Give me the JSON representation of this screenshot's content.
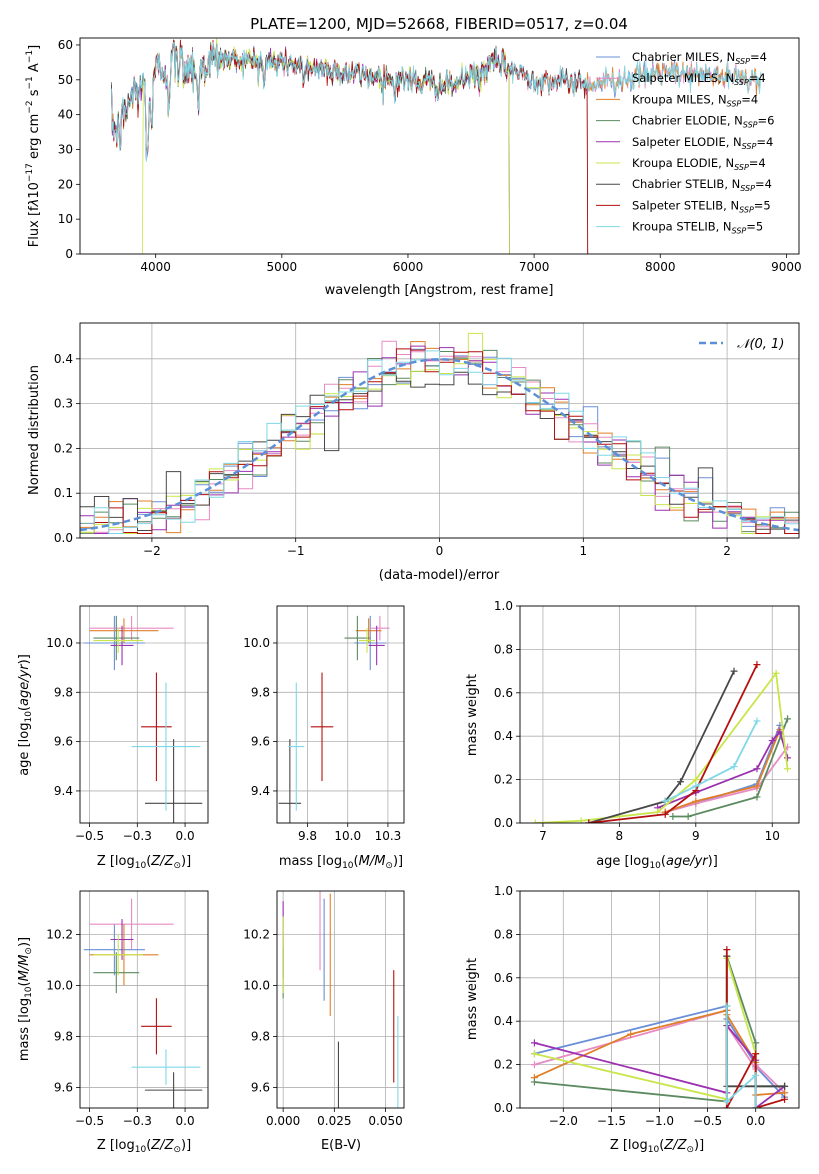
{
  "colors": [
    "#6a8fd8",
    "#e88ac3",
    "#e07f2a",
    "#5c8a60",
    "#9b30b0",
    "#c8e64a",
    "#474747",
    "#b40f0f",
    "#7fd8e6"
  ],
  "chart_data": [
    {
      "id": "spectrum",
      "type": "line",
      "title": "PLATE=1200, MJD=52668, FIBERID=0517, z=0.04",
      "xlabel": "wavelength [Angstrom, rest frame]",
      "ylabel": "Flux [f_λ 10⁻¹⁷ erg cm⁻² s⁻¹ A⁻¹]",
      "xlim": [
        3400,
        9100
      ],
      "ylim": [
        0,
        62
      ],
      "xticks": [
        4000,
        5000,
        6000,
        7000,
        8000,
        9000
      ],
      "yticks": [
        0,
        10,
        20,
        30,
        40,
        50,
        60
      ],
      "legend_position": "top-right",
      "legend": [
        {
          "name": "Chabrier MILES",
          "n": "4"
        },
        {
          "name": "Salpeter MILES",
          "n": "4"
        },
        {
          "name": "Kroupa MILES",
          "n": "4"
        },
        {
          "name": "Chabrier ELODIE",
          "n": "6"
        },
        {
          "name": "Salpeter ELODIE",
          "n": "4"
        },
        {
          "name": "Kroupa ELODIE",
          "n": "4"
        },
        {
          "name": "Chabrier STELIB",
          "n": "4"
        },
        {
          "name": "Salpeter STELIB",
          "n": "5"
        },
        {
          "name": "Kroupa STELIB",
          "n": "5"
        }
      ],
      "continuum": {
        "x": [
          3650,
          3700,
          3800,
          3900,
          4000,
          4100,
          4300,
          4500,
          5000,
          5500,
          6000,
          6300,
          6500,
          6700,
          7000,
          7500,
          8000,
          8500,
          8900
        ],
        "y": [
          38,
          34,
          45,
          48,
          52,
          55,
          54,
          56,
          55,
          52,
          50,
          48,
          51,
          55,
          50,
          49,
          52,
          51,
          50
        ]
      },
      "ranges": [
        [
          3650,
          8800
        ],
        [
          3650,
          8800
        ],
        [
          3650,
          8800
        ],
        [
          3650,
          6800
        ],
        [
          3650,
          6800
        ],
        [
          3900,
          6800
        ],
        [
          3650,
          7420
        ],
        [
          3650,
          7420
        ],
        [
          3650,
          8800
        ]
      ]
    },
    {
      "id": "residuals",
      "type": "step",
      "xlabel": "(data-model)/error",
      "ylabel": "Normed distribution",
      "xlim": [
        -2.5,
        2.5
      ],
      "ylim": [
        0,
        0.48
      ],
      "xticks": [
        -2,
        -1,
        0,
        1,
        2
      ],
      "yticks": [
        0.0,
        0.1,
        0.2,
        0.3,
        0.4
      ],
      "reference_label": "𝒩(0, 1)",
      "bin_width": 0.1
    },
    {
      "id": "age-vs-z",
      "type": "errorbar",
      "xlabel": "Z [log₁₀(Z/Z☉)]",
      "ylabel": "age  [log₁₀(age/yr)]",
      "xlim": [
        -0.55,
        0.12
      ],
      "ylim": [
        9.27,
        10.15
      ],
      "xticks": [
        -0.5,
        -0.25,
        0.0
      ],
      "yticks": [
        9.4,
        9.6,
        9.8,
        10.0
      ],
      "points": [
        {
          "x": -0.37,
          "xe": 0.16,
          "y": 10.0,
          "ye": 0.11
        },
        {
          "x": -0.28,
          "xe": 0.22,
          "y": 10.06,
          "ye": 0.05
        },
        {
          "x": -0.32,
          "xe": 0.18,
          "y": 10.05,
          "ye": 0.05
        },
        {
          "x": -0.36,
          "xe": 0.12,
          "y": 10.02,
          "ye": 0.09
        },
        {
          "x": -0.33,
          "xe": 0.06,
          "y": 9.99,
          "ye": 0.08
        },
        {
          "x": -0.35,
          "xe": 0.13,
          "y": 10.01,
          "ye": 0.05
        },
        {
          "x": -0.06,
          "xe": 0.15,
          "y": 9.35,
          "ye": 0.26
        },
        {
          "x": -0.15,
          "xe": 0.08,
          "y": 9.66,
          "ye": 0.22
        },
        {
          "x": -0.1,
          "xe": 0.18,
          "y": 9.58,
          "ye": 0.26
        }
      ]
    },
    {
      "id": "age-vs-mass",
      "type": "errorbar",
      "xlabel": "mass [log₁₀(M/M☉)]",
      "ylabel": "",
      "xlim": [
        9.56,
        10.35
      ],
      "ylim": [
        9.27,
        10.15
      ],
      "xticks": [
        9.75,
        10.0,
        10.25
      ],
      "yticks": [
        9.4,
        9.6,
        9.8,
        10.0
      ],
      "points": [
        {
          "x": 10.14,
          "xe": 0.1,
          "y": 10.0,
          "ye": 0.11
        },
        {
          "x": 10.2,
          "xe": 0.06,
          "y": 10.06,
          "ye": 0.05
        },
        {
          "x": 10.13,
          "xe": 0.08,
          "y": 10.05,
          "ye": 0.05
        },
        {
          "x": 10.06,
          "xe": 0.08,
          "y": 10.02,
          "ye": 0.09
        },
        {
          "x": 10.18,
          "xe": 0.05,
          "y": 9.99,
          "ye": 0.08
        },
        {
          "x": 10.12,
          "xe": 0.05,
          "y": 10.01,
          "ye": 0.05
        },
        {
          "x": 9.64,
          "xe": 0.07,
          "y": 9.35,
          "ye": 0.26
        },
        {
          "x": 9.84,
          "xe": 0.07,
          "y": 9.66,
          "ye": 0.22
        },
        {
          "x": 9.68,
          "xe": 0.05,
          "y": 9.58,
          "ye": 0.26
        }
      ]
    },
    {
      "id": "mass-weight-vs-age",
      "type": "line",
      "xlabel": "age  [log₁₀(age/yr)]",
      "ylabel": "mass weight",
      "xlim": [
        6.7,
        10.35
      ],
      "ylim": [
        0,
        1.0
      ],
      "xticks": [
        7,
        8,
        9,
        10
      ],
      "yticks": [
        0.0,
        0.2,
        0.4,
        0.6,
        0.8,
        1.0
      ],
      "series": [
        {
          "x": [
            8.6,
            9.0,
            9.8,
            10.1
          ],
          "y": [
            0.05,
            0.09,
            0.18,
            0.45
          ]
        },
        {
          "x": [
            8.6,
            9.0,
            9.8,
            10.2
          ],
          "y": [
            0.05,
            0.09,
            0.16,
            0.35
          ]
        },
        {
          "x": [
            8.6,
            9.0,
            9.8,
            10.1
          ],
          "y": [
            0.05,
            0.1,
            0.17,
            0.43
          ]
        },
        {
          "x": [
            8.7,
            8.9,
            9.8,
            10.2
          ],
          "y": [
            0.03,
            0.03,
            0.12,
            0.48
          ]
        },
        {
          "x": [
            8.5,
            9.0,
            9.8,
            10.0,
            10.1,
            10.2
          ],
          "y": [
            0.07,
            0.14,
            0.25,
            0.38,
            0.42,
            0.3
          ]
        },
        {
          "x": [
            6.9,
            7.5,
            8.5,
            9.0,
            10.05,
            10.2
          ],
          "y": [
            0.0,
            0.01,
            0.05,
            0.2,
            0.69,
            0.25
          ]
        },
        {
          "x": [
            7.6,
            8.6,
            8.8,
            9.5
          ],
          "y": [
            0.0,
            0.1,
            0.19,
            0.7
          ]
        },
        {
          "x": [
            7.6,
            8.6,
            9.0,
            9.8
          ],
          "y": [
            0.0,
            0.04,
            0.15,
            0.73
          ]
        },
        {
          "x": [
            8.6,
            9.0,
            9.5,
            9.8
          ],
          "y": [
            0.1,
            0.17,
            0.26,
            0.47
          ]
        }
      ]
    },
    {
      "id": "mass-vs-z",
      "type": "errorbar",
      "xlabel": "Z [log₁₀(Z/Z☉)]",
      "ylabel": "mass [log₁₀(M/M☉)]",
      "xlim": [
        -0.55,
        0.12
      ],
      "ylim": [
        9.52,
        10.37
      ],
      "xticks": [
        -0.5,
        -0.25,
        0.0
      ],
      "yticks": [
        9.6,
        9.8,
        10.0,
        10.2
      ],
      "points": [
        {
          "x": -0.37,
          "xe": 0.16,
          "y": 10.14,
          "ye": 0.1
        },
        {
          "x": -0.28,
          "xe": 0.22,
          "y": 10.24,
          "ye": 0.1
        },
        {
          "x": -0.32,
          "xe": 0.18,
          "y": 10.12,
          "ye": 0.12
        },
        {
          "x": -0.36,
          "xe": 0.12,
          "y": 10.05,
          "ye": 0.08
        },
        {
          "x": -0.33,
          "xe": 0.06,
          "y": 10.18,
          "ye": 0.08
        },
        {
          "x": -0.35,
          "xe": 0.13,
          "y": 10.12,
          "ye": 0.08
        },
        {
          "x": -0.06,
          "xe": 0.15,
          "y": 9.59,
          "ye": 0.07
        },
        {
          "x": -0.15,
          "xe": 0.08,
          "y": 9.84,
          "ye": 0.11
        },
        {
          "x": -0.1,
          "xe": 0.18,
          "y": 9.68,
          "ye": 0.07
        }
      ]
    },
    {
      "id": "mass-vs-ebv",
      "type": "errorbar",
      "xlabel": "E(B-V)",
      "ylabel": "",
      "xlim": [
        -0.003,
        0.059
      ],
      "ylim": [
        9.52,
        10.37
      ],
      "xticks": [
        0.0,
        0.025,
        0.05
      ],
      "yticks": [
        9.6,
        9.8,
        10.0,
        10.2
      ],
      "points": [
        {
          "x": 0.02,
          "xe": 0,
          "y": 10.14,
          "ye": 0.2
        },
        {
          "x": 0.018,
          "xe": 0,
          "y": 10.24,
          "ye": 0.18
        },
        {
          "x": 0.023,
          "xe": 0,
          "y": 10.12,
          "ye": 0.24
        },
        {
          "x": 0.0,
          "xe": 0,
          "y": 10.05,
          "ye": 0.1
        },
        {
          "x": 0.0,
          "xe": 0,
          "y": 10.18,
          "ye": 0.15
        },
        {
          "x": 0.0,
          "xe": 0,
          "y": 10.12,
          "ye": 0.15
        },
        {
          "x": 0.027,
          "xe": 0,
          "y": 9.59,
          "ye": 0.19
        },
        {
          "x": 0.054,
          "xe": 0,
          "y": 9.84,
          "ye": 0.22
        },
        {
          "x": 0.056,
          "xe": 0,
          "y": 9.68,
          "ye": 0.2
        }
      ]
    },
    {
      "id": "mass-weight-vs-z",
      "type": "line",
      "xlabel": "Z [log₁₀(Z/Z☉)]",
      "ylabel": "mass weight",
      "xlim": [
        -2.45,
        0.45
      ],
      "ylim": [
        0,
        1.0
      ],
      "xticks": [
        -2.0,
        -1.5,
        -1.0,
        -0.5,
        0.0
      ],
      "yticks": [
        0.0,
        0.2,
        0.4,
        0.6,
        0.8,
        1.0
      ],
      "series": [
        {
          "x": [
            -2.3,
            -0.3,
            -0.3,
            0.0,
            0.0,
            0.3
          ],
          "y": [
            0.25,
            0.47,
            0.41,
            0.2,
            0.19,
            0.05
          ]
        },
        {
          "x": [
            -2.3,
            -0.3,
            -0.3,
            0.0,
            0.0,
            0.3
          ],
          "y": [
            0.2,
            0.45,
            0.38,
            0.18,
            0.2,
            0.07
          ]
        },
        {
          "x": [
            -2.3,
            -1.3,
            -0.3,
            -0.3,
            0.0,
            0.0,
            0.3
          ],
          "y": [
            0.14,
            0.34,
            0.45,
            0.43,
            0.21,
            0.06,
            0.07
          ]
        },
        {
          "x": [
            -2.3,
            -0.3,
            -0.3,
            0.0,
            0.0,
            0.3
          ],
          "y": [
            0.12,
            0.03,
            0.7,
            0.3,
            0.1,
            0.1
          ]
        },
        {
          "x": [
            -2.3,
            -0.3,
            -0.3,
            0.0,
            0.0,
            0.3
          ],
          "y": [
            0.3,
            0.07,
            0.38,
            0.22,
            0.0,
            0.1
          ]
        },
        {
          "x": [
            -2.3,
            -0.3,
            -0.3,
            0.0,
            0.0
          ],
          "y": [
            0.25,
            0.04,
            0.69,
            0.25,
            0.0
          ]
        },
        {
          "x": [
            -0.3,
            -0.3,
            0.0,
            0.3
          ],
          "y": [
            0.7,
            0.1,
            0.1,
            0.1
          ]
        },
        {
          "x": [
            -0.3,
            -0.3,
            0.0,
            0.0,
            0.3
          ],
          "y": [
            0.73,
            0.0,
            0.25,
            0.0,
            0.04
          ]
        },
        {
          "x": [
            -0.3,
            -0.3,
            0.0,
            0.0
          ],
          "y": [
            0.47,
            0.03,
            0.15,
            0.0
          ]
        }
      ]
    }
  ]
}
